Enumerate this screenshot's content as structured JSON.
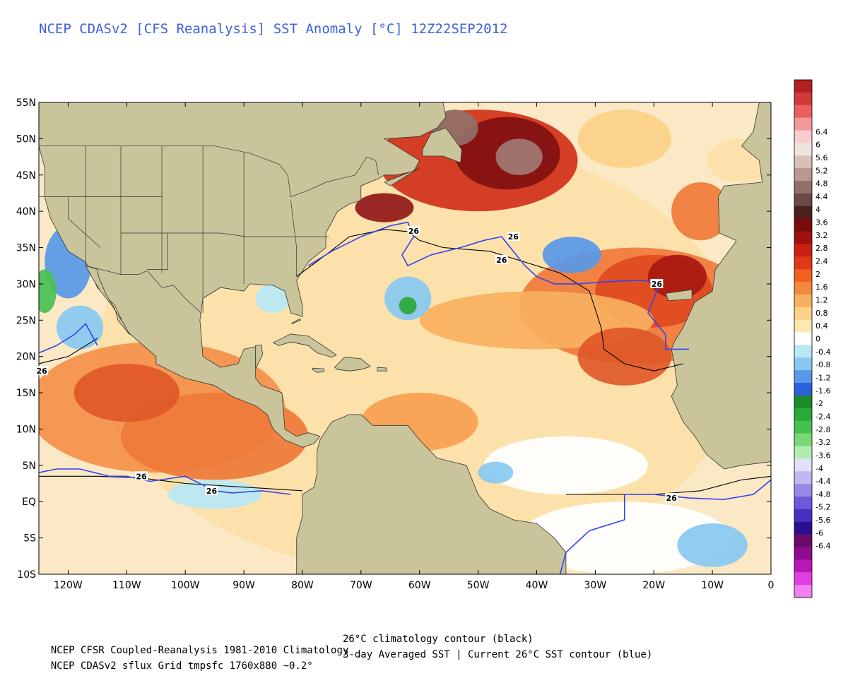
{
  "title": "NCEP CDASv2 [CFS Reanalysis] SST Anomaly [°C] 12Z22SEP2012",
  "footer": {
    "line1_left": "NCEP CFSR Coupled-Reanalysis 1981-2010 Climatology",
    "line1_right": "26°C climatology contour (black)",
    "line2_left": "NCEP CDASv2 sflux Grid tmpsfc 1760x880 ~0.2°",
    "line2_right": "3-day Averaged SST | Current 26°C SST contour (blue)"
  },
  "map": {
    "lon_range": [
      -125,
      0
    ],
    "lat_range": [
      -10,
      55
    ],
    "lon_ticks": [
      "120W",
      "110W",
      "100W",
      "90W",
      "80W",
      "70W",
      "60W",
      "50W",
      "40W",
      "30W",
      "20W",
      "10W",
      "0"
    ],
    "lon_tick_values": [
      -120,
      -110,
      -100,
      -90,
      -80,
      -70,
      -60,
      -50,
      -40,
      -30,
      -20,
      -10,
      0
    ],
    "lat_ticks": [
      "55N",
      "50N",
      "45N",
      "40N",
      "35N",
      "30N",
      "25N",
      "20N",
      "15N",
      "10N",
      "5N",
      "EQ",
      "5S",
      "10S"
    ],
    "lat_tick_values": [
      55,
      50,
      45,
      40,
      35,
      30,
      25,
      20,
      15,
      10,
      5,
      0,
      -5,
      -10
    ],
    "contour_labels": [
      {
        "text": "26",
        "lon": -61,
        "lat": 37.3
      },
      {
        "text": "26",
        "lon": -44,
        "lat": 36.5
      },
      {
        "text": "26",
        "lon": -46,
        "lat": 33.3
      },
      {
        "text": "26",
        "lon": -19.5,
        "lat": 30.0
      },
      {
        "text": "26",
        "lon": -124.5,
        "lat": 18.0
      },
      {
        "text": "26",
        "lon": -107.5,
        "lat": 3.5
      },
      {
        "text": "26",
        "lon": -95.5,
        "lat": 1.5
      },
      {
        "text": "26",
        "lon": -17,
        "lat": 0.5
      }
    ],
    "colors": {
      "ocean_neutral": "#ffffff",
      "land": "#c9c49a",
      "contour_clim": "#000000",
      "contour_current": "#3344ee"
    }
  },
  "colorbar": {
    "unit": "°C",
    "colors": [
      "#b22022",
      "#d03a3a",
      "#e86060",
      "#f29a9a",
      "#f8cccc",
      "#efe4e0",
      "#d8c0b8",
      "#b89890",
      "#907068",
      "#6a4a44",
      "#4a201c",
      "#7a0c0c",
      "#a01010",
      "#c82010",
      "#e03818",
      "#f06020",
      "#f48840",
      "#f8b060",
      "#fbd088",
      "#fde8b0",
      "#ffffff",
      "#b8e8f4",
      "#88c8f0",
      "#5898e8",
      "#2a60d8",
      "#1a8a2a",
      "#2aa838",
      "#48c050",
      "#78d878",
      "#b0ecb0",
      "#e0e0f6",
      "#c0b8f0",
      "#9a88e8",
      "#7058d8",
      "#4a30c0",
      "#2a1090",
      "#6a0a6a",
      "#900a90",
      "#b818b8",
      "#e040e0",
      "#f080f0"
    ],
    "labels": [
      "6.4",
      "6",
      "5.6",
      "5.2",
      "4.8",
      "4.4",
      "4",
      "3.6",
      "3.2",
      "2.8",
      "2.4",
      "2",
      "1.6",
      "1.2",
      "0.8",
      "0.4",
      "0",
      "-0.4",
      "-0.8",
      "-1.2",
      "-1.6",
      "-2",
      "-2.4",
      "-2.8",
      "-3.2",
      "-3.6",
      "-4",
      "-4.4",
      "-4.8",
      "-5.2",
      "-5.6",
      "-6",
      "-6.4"
    ],
    "label_values": [
      6.4,
      6,
      5.6,
      5.2,
      4.8,
      4.4,
      4,
      3.6,
      3.2,
      2.8,
      2.4,
      2,
      1.6,
      1.2,
      0.8,
      0.4,
      0,
      -0.4,
      -0.8,
      -1.2,
      -1.6,
      -2,
      -2.4,
      -2.8,
      -3.2,
      -3.6,
      -4,
      -4.4,
      -4.8,
      -5.2,
      -5.6,
      -6,
      -6.4
    ],
    "value_range": [
      -8.0,
      8.0
    ]
  }
}
